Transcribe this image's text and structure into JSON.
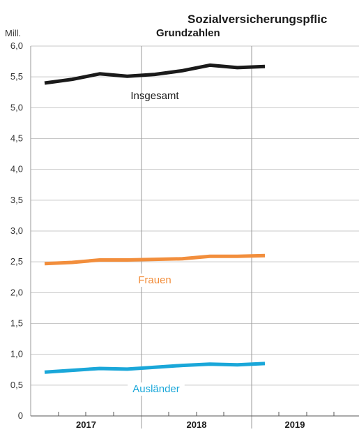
{
  "chart_data": {
    "type": "line",
    "title": "Sozialversicherungspflic",
    "subtitle": "Grundzahlen",
    "ylabel": "Mill.",
    "ylim": [
      0,
      6.0
    ],
    "yticks": [
      "0",
      "0,5",
      "1,0",
      "1,5",
      "2,0",
      "2,5",
      "3,0",
      "3,5",
      "4,0",
      "4,5",
      "5,0",
      "5,5",
      "6,0"
    ],
    "x_groups": [
      "2017",
      "2018",
      "2019"
    ],
    "x": [
      "2017-01",
      "2017-04",
      "2017-07",
      "2017-10",
      "2018-01",
      "2018-04",
      "2018-07",
      "2018-10",
      "2019-01"
    ],
    "grid": true,
    "series": [
      {
        "name": "Insgesamt",
        "color": "#1a1a1a",
        "values": [
          5.4,
          5.46,
          5.55,
          5.51,
          5.54,
          5.6,
          5.69,
          5.65,
          5.67
        ]
      },
      {
        "name": "Frauen",
        "color": "#f28e3c",
        "values": [
          2.47,
          2.49,
          2.53,
          2.53,
          2.54,
          2.55,
          2.59,
          2.59,
          2.6
        ]
      },
      {
        "name": "Ausländer",
        "color": "#1aa7d9",
        "values": [
          0.71,
          0.74,
          0.77,
          0.76,
          0.79,
          0.82,
          0.84,
          0.83,
          0.85
        ]
      }
    ]
  }
}
